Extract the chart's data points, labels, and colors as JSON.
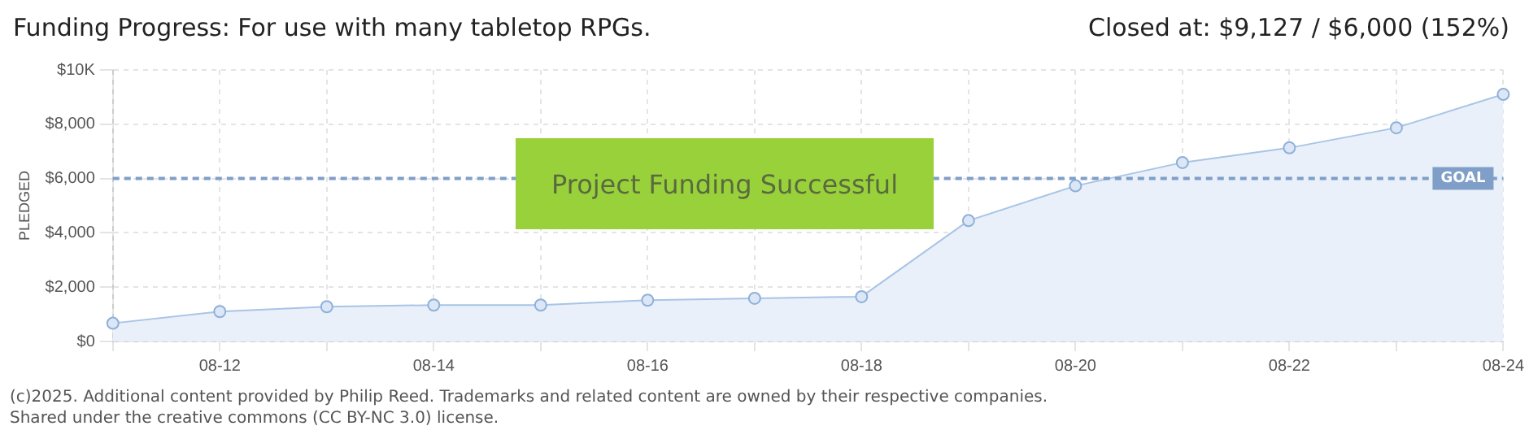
{
  "chart_data": {
    "type": "area",
    "title": "Funding Progress: For use with many tabletop RPGs.",
    "subtitle": "Closed at:  $9,127 /  $6,000 (152%)",
    "ylabel": "PLEDGED",
    "categories": [
      null,
      "08-12",
      null,
      "08-14",
      null,
      "08-16",
      null,
      "08-18",
      null,
      "08-20",
      null,
      "08-22",
      null,
      "08-24"
    ],
    "series": [
      {
        "color": "#a8c4e6",
        "values": [
          670,
          1100,
          1280,
          1340,
          1340,
          1520,
          1590,
          1650,
          4450,
          5730,
          6590,
          7130,
          7870,
          9100
        ]
      }
    ],
    "ylim": [
      0,
      10000
    ],
    "yticks": [
      {
        "value": 0,
        "label": "$0"
      },
      {
        "value": 2000,
        "label": "$2,000"
      },
      {
        "value": 4000,
        "label": "$4,000"
      },
      {
        "value": 6000,
        "label": "$6,000"
      },
      {
        "value": 8000,
        "label": "$8,000"
      },
      {
        "value": 10000,
        "label": "$10K"
      }
    ],
    "ref_lines": [
      {
        "axis": "y",
        "value": 6000,
        "label": "GOAL",
        "color": "#7f9fc8",
        "line_style": "dashed"
      }
    ],
    "annotations": [
      "Project Funding Successful",
      "(c)2025. Additional content provided by Philip Reed. Trademarks and related content are owned by their respective companies.",
      "Shared under the creative commons (CC BY-NC 3.0) license."
    ],
    "grid": true,
    "marker": "circle",
    "legend": false
  }
}
